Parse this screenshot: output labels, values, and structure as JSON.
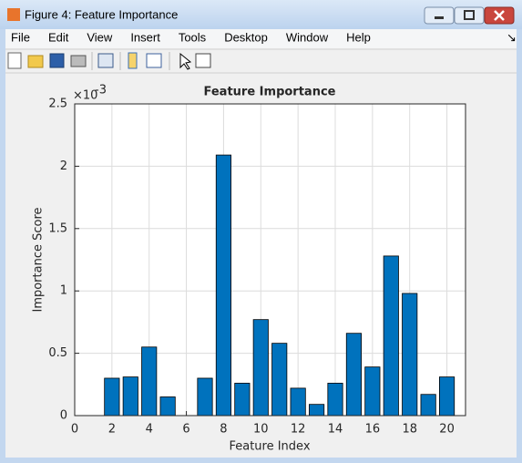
{
  "window_title": "Figure 4: Feature Importance",
  "menu": [
    "File",
    "Edit",
    "View",
    "Insert",
    "Tools",
    "Desktop",
    "Window",
    "Help"
  ],
  "chart_data": {
    "type": "bar",
    "title": "Feature Importance",
    "x_label": "Feature Index",
    "y_label": "Importance Score",
    "y_exponent": {
      "base": "×10",
      "power": "-3"
    },
    "x": [
      1,
      2,
      3,
      4,
      5,
      6,
      7,
      8,
      9,
      10,
      11,
      12,
      13,
      14,
      15,
      16,
      17,
      18,
      19,
      20
    ],
    "values": [
      0,
      0.3,
      0.31,
      0.55,
      0.15,
      0,
      0.3,
      2.09,
      0.26,
      0.77,
      0.58,
      0.22,
      0.09,
      0.26,
      0.66,
      0.39,
      1.28,
      0.98,
      0.17,
      0.31
    ],
    "color": "#0072bd",
    "xlim": [
      0,
      21
    ],
    "xticks": [
      0,
      2,
      4,
      6,
      8,
      10,
      12,
      14,
      16,
      18,
      20
    ],
    "ylim": [
      0,
      2.5
    ],
    "yticks": [
      0,
      0.5,
      1,
      1.5,
      2,
      2.5
    ],
    "grid": true
  }
}
